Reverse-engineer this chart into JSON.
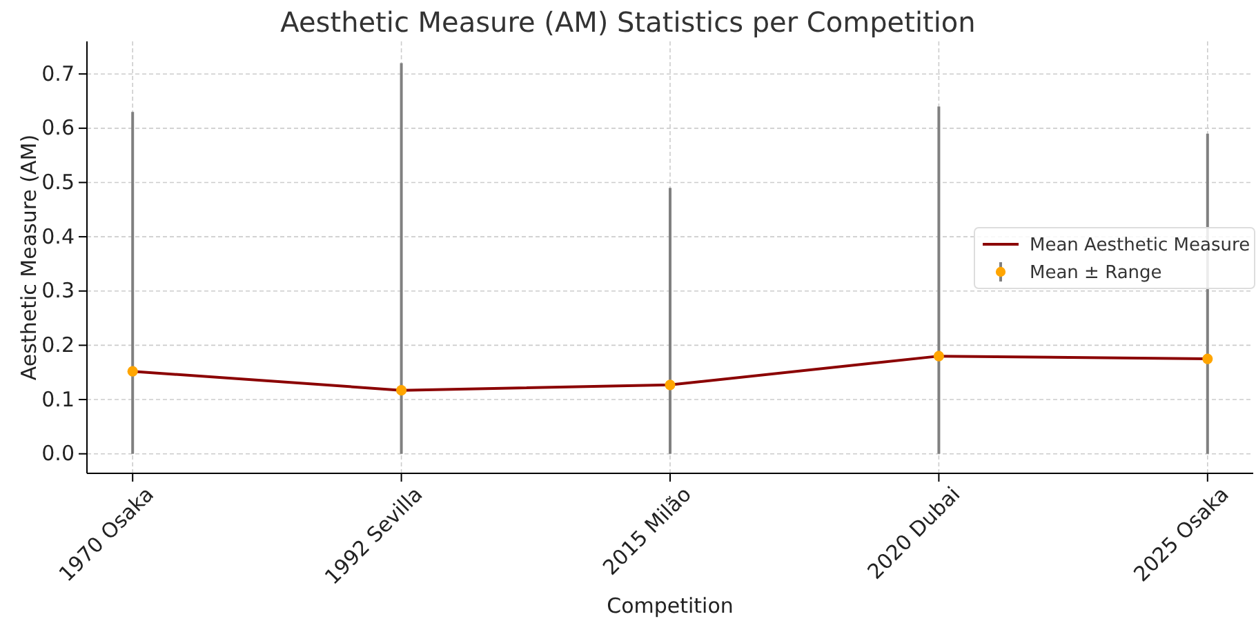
{
  "chart_data": {
    "type": "line",
    "title": "Aesthetic Measure (AM) Statistics per Competition",
    "xlabel": "Competition",
    "ylabel": "Aesthetic Measure (AM)",
    "categories": [
      "1970 Osaka",
      "1992 Sevilla",
      "2015 Milão",
      "2020 Dubai",
      "2025 Osaka"
    ],
    "series": [
      {
        "name": "Mean Aesthetic Measure",
        "type": "line",
        "color": "#8b0000",
        "values": [
          0.152,
          0.117,
          0.127,
          0.18,
          0.175
        ]
      },
      {
        "name": "Mean ± Range",
        "type": "scatter",
        "color": "#ffa500",
        "marker": "circle",
        "values": [
          0.152,
          0.117,
          0.127,
          0.18,
          0.175
        ],
        "errors": [
          [
            0,
            0.63
          ],
          [
            0,
            0.72
          ],
          [
            0,
            0.49
          ],
          [
            0,
            0.64
          ],
          [
            0,
            0.59
          ]
        ]
      }
    ],
    "ylim": [
      -0.036,
      0.76
    ],
    "yticks": [
      {
        "value": 0,
        "label": "0.0"
      },
      0.1,
      0.2,
      0.3,
      0.4,
      0.5,
      0.6,
      0.7
    ],
    "grid": true,
    "legend": "right"
  }
}
